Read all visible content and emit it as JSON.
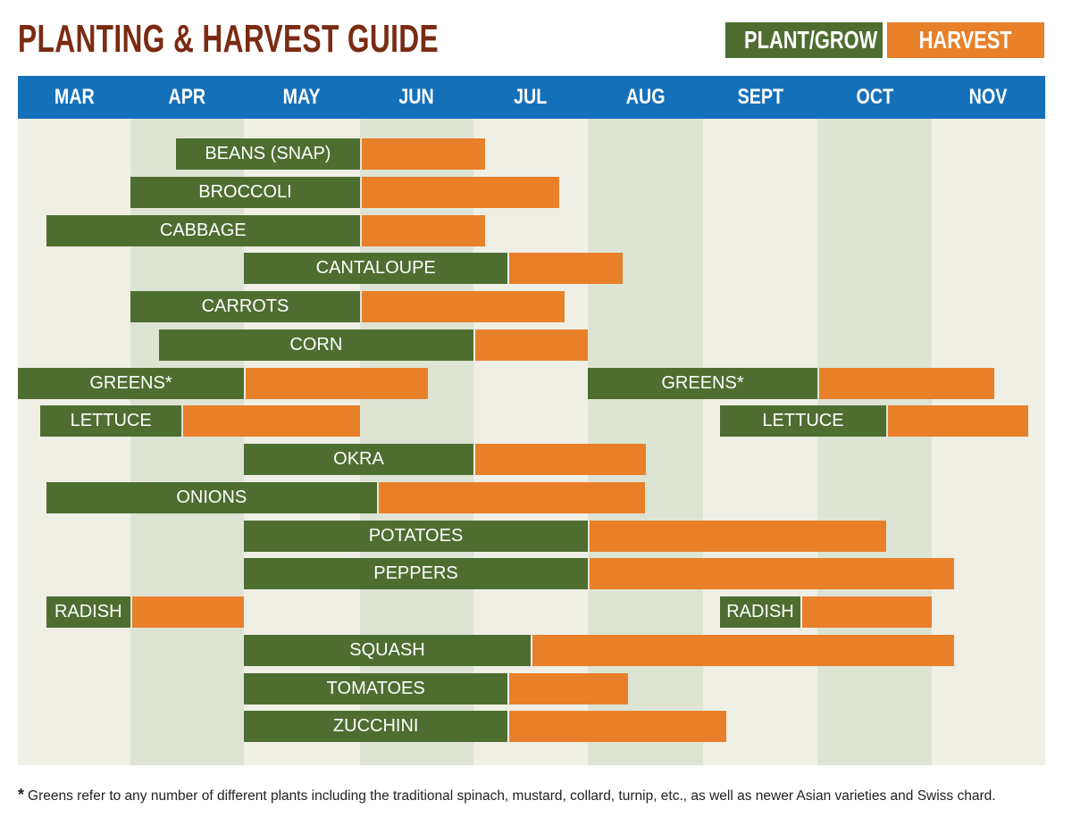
{
  "title": "PLANTING & HARVEST GUIDE",
  "legend": {
    "plant_label": "PLANT/GROW",
    "harvest_label": "HARVEST"
  },
  "colors": {
    "plant": "#4e6e31",
    "harvest": "#e8802a",
    "header": "#1570ba",
    "title": "#7a2b12",
    "chart_bg": "#f0efe6",
    "alt_band": "#dee4d4"
  },
  "footnote": {
    "marker": "*",
    "text": "Greens refer to any number of different plants including the traditional spinach, mustard, collard, turnip, etc., as well as newer Asian varieties and Swiss chard."
  },
  "chart_data": {
    "type": "gantt",
    "months": [
      "MAR",
      "APR",
      "MAY",
      "JUN",
      "JUL",
      "AUG",
      "SEPT",
      "OCT",
      "NOV"
    ],
    "x_range_month_index": [
      0,
      9
    ],
    "alternate_shaded_months": [
      "APR",
      "JUN",
      "AUG",
      "OCT"
    ],
    "crops": [
      {
        "name": "BEANS (SNAP)",
        "segments": [
          {
            "type": "plant",
            "start": 1.4,
            "end": 3.0
          },
          {
            "type": "harvest",
            "start": 3.0,
            "end": 4.1
          }
        ]
      },
      {
        "name": "BROCCOLI",
        "segments": [
          {
            "type": "plant",
            "start": 1.0,
            "end": 3.0
          },
          {
            "type": "harvest",
            "start": 3.0,
            "end": 4.75
          }
        ]
      },
      {
        "name": "CABBAGE",
        "segments": [
          {
            "type": "plant",
            "start": 0.25,
            "end": 3.0
          },
          {
            "type": "harvest",
            "start": 3.0,
            "end": 4.1
          }
        ]
      },
      {
        "name": "CANTALOUPE",
        "segments": [
          {
            "type": "plant",
            "start": 2.0,
            "end": 4.3
          },
          {
            "type": "harvest",
            "start": 4.3,
            "end": 5.3
          }
        ]
      },
      {
        "name": "CARROTS",
        "segments": [
          {
            "type": "plant",
            "start": 1.0,
            "end": 3.0
          },
          {
            "type": "harvest",
            "start": 3.0,
            "end": 4.8
          }
        ]
      },
      {
        "name": "CORN",
        "segments": [
          {
            "type": "plant",
            "start": 1.25,
            "end": 4.0
          },
          {
            "type": "harvest",
            "start": 4.0,
            "end": 5.0
          }
        ]
      },
      {
        "name": "GREENS*",
        "segments": [
          {
            "type": "plant",
            "start": 0.0,
            "end": 2.0
          },
          {
            "type": "harvest",
            "start": 2.0,
            "end": 3.6
          }
        ]
      },
      {
        "name": "GREENS*",
        "segments": [
          {
            "type": "plant",
            "start": 5.0,
            "end": 7.0
          },
          {
            "type": "harvest",
            "start": 7.0,
            "end": 8.55
          }
        ]
      },
      {
        "name": "LETTUCE",
        "segments": [
          {
            "type": "plant",
            "start": 0.2,
            "end": 1.45
          },
          {
            "type": "harvest",
            "start": 1.45,
            "end": 3.0
          }
        ]
      },
      {
        "name": "LETTUCE",
        "segments": [
          {
            "type": "plant",
            "start": 6.15,
            "end": 7.6
          },
          {
            "type": "harvest",
            "start": 7.6,
            "end": 8.85
          }
        ]
      },
      {
        "name": "OKRA",
        "segments": [
          {
            "type": "plant",
            "start": 2.0,
            "end": 4.0
          },
          {
            "type": "harvest",
            "start": 4.0,
            "end": 5.5
          }
        ]
      },
      {
        "name": "ONIONS",
        "segments": [
          {
            "type": "plant",
            "start": 0.25,
            "end": 3.15
          },
          {
            "type": "harvest",
            "start": 3.15,
            "end": 5.5
          }
        ]
      },
      {
        "name": "POTATOES",
        "segments": [
          {
            "type": "plant",
            "start": 2.0,
            "end": 5.0
          },
          {
            "type": "harvest",
            "start": 5.0,
            "end": 7.6
          }
        ]
      },
      {
        "name": "PEPPERS",
        "segments": [
          {
            "type": "plant",
            "start": 2.0,
            "end": 5.0
          },
          {
            "type": "harvest",
            "start": 5.0,
            "end": 8.2
          }
        ]
      },
      {
        "name": "RADISH",
        "segments": [
          {
            "type": "plant",
            "start": 0.25,
            "end": 1.0
          },
          {
            "type": "harvest",
            "start": 1.0,
            "end": 2.0
          }
        ]
      },
      {
        "name": "RADISH",
        "segments": [
          {
            "type": "plant",
            "start": 6.15,
            "end": 6.85
          },
          {
            "type": "harvest",
            "start": 6.85,
            "end": 8.0
          }
        ]
      },
      {
        "name": "SQUASH",
        "segments": [
          {
            "type": "plant",
            "start": 2.0,
            "end": 4.5
          },
          {
            "type": "harvest",
            "start": 4.5,
            "end": 8.2
          }
        ]
      },
      {
        "name": "TOMATOES",
        "segments": [
          {
            "type": "plant",
            "start": 2.0,
            "end": 4.3
          },
          {
            "type": "harvest",
            "start": 4.3,
            "end": 5.35
          }
        ]
      },
      {
        "name": "ZUCCHINI",
        "segments": [
          {
            "type": "plant",
            "start": 2.0,
            "end": 4.3
          },
          {
            "type": "harvest",
            "start": 4.3,
            "end": 6.2
          }
        ]
      }
    ],
    "row_of_bar": [
      0,
      1,
      2,
      3,
      4,
      5,
      6,
      6,
      7,
      7,
      8,
      9,
      10,
      11,
      12,
      12,
      13,
      14,
      15
    ]
  }
}
